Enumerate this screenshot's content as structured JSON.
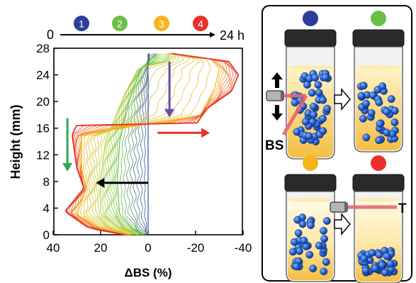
{
  "chart_data": {
    "type": "line",
    "xlabel": "ΔBS (%)",
    "ylabel": "Height (mm)",
    "xlim": [
      40,
      -40
    ],
    "ylim": [
      0,
      28
    ],
    "xticks": [
      40,
      20,
      0,
      -20,
      -40
    ],
    "yticks": [
      0,
      4,
      8,
      12,
      16,
      20,
      24,
      28
    ],
    "time_axis": {
      "start": "0",
      "end": "24 h"
    },
    "stages": [
      {
        "id": "1",
        "color": "#2b3e9c"
      },
      {
        "id": "2",
        "color": "#6cbf45"
      },
      {
        "id": "3",
        "color": "#f4b41a"
      },
      {
        "id": "4",
        "color": "#e8312b"
      }
    ],
    "series": [
      {
        "stage": "1",
        "color": "#2b3e9c",
        "points": [
          [
            0,
            0
          ],
          [
            0,
            4
          ],
          [
            0,
            8
          ],
          [
            0,
            12
          ],
          [
            0,
            16
          ],
          [
            0,
            20
          ],
          [
            0,
            24
          ],
          [
            0,
            26
          ],
          [
            0,
            27.2
          ]
        ]
      },
      {
        "stage": "2",
        "color": "#6cbf45",
        "points": [
          [
            2,
            0
          ],
          [
            6,
            0.8
          ],
          [
            12,
            3
          ],
          [
            13,
            8
          ],
          [
            12,
            14
          ],
          [
            8,
            20
          ],
          [
            3,
            25
          ],
          [
            -2,
            26.5
          ],
          [
            -4,
            27.2
          ]
        ]
      },
      {
        "stage": "2",
        "color": "#b3cf3a",
        "points": [
          [
            4,
            0
          ],
          [
            12,
            1
          ],
          [
            20,
            3
          ],
          [
            20,
            8
          ],
          [
            18,
            14
          ],
          [
            10,
            21
          ],
          [
            4,
            25
          ],
          [
            -8,
            26
          ],
          [
            -12,
            27
          ]
        ]
      },
      {
        "stage": "3",
        "color": "#f4b41a",
        "points": [
          [
            8,
            0
          ],
          [
            20,
            1
          ],
          [
            30,
            3
          ],
          [
            26,
            7
          ],
          [
            28,
            10
          ],
          [
            28,
            15
          ],
          [
            -15,
            17.5
          ],
          [
            -22,
            18
          ],
          [
            -28,
            22
          ],
          [
            -30,
            25
          ],
          [
            -26,
            26.5
          ],
          [
            -8,
            27.2
          ]
        ]
      },
      {
        "stage": "4",
        "color": "#e8312b",
        "points": [
          [
            10,
            0
          ],
          [
            25,
            1
          ],
          [
            35,
            3.5
          ],
          [
            27,
            7
          ],
          [
            30,
            10
          ],
          [
            32,
            15
          ],
          [
            30,
            16.5
          ],
          [
            -20,
            16.5
          ],
          [
            -25,
            19
          ],
          [
            -35,
            21.5
          ],
          [
            -38,
            24
          ],
          [
            -34,
            26
          ],
          [
            -10,
            27.2
          ]
        ]
      }
    ],
    "annotations": {
      "green_arrow": "down",
      "purple_arrow": "down",
      "red_arrow": "right",
      "black_arrow": "left"
    }
  },
  "panel": {
    "labels": {
      "bs": "BS",
      "t": "T"
    },
    "vials": [
      {
        "stage": "1",
        "color": "#2b3e9c"
      },
      {
        "stage": "2",
        "color": "#6cbf45"
      },
      {
        "stage": "3",
        "color": "#f4b41a"
      },
      {
        "stage": "4",
        "color": "#e8312b"
      }
    ]
  }
}
